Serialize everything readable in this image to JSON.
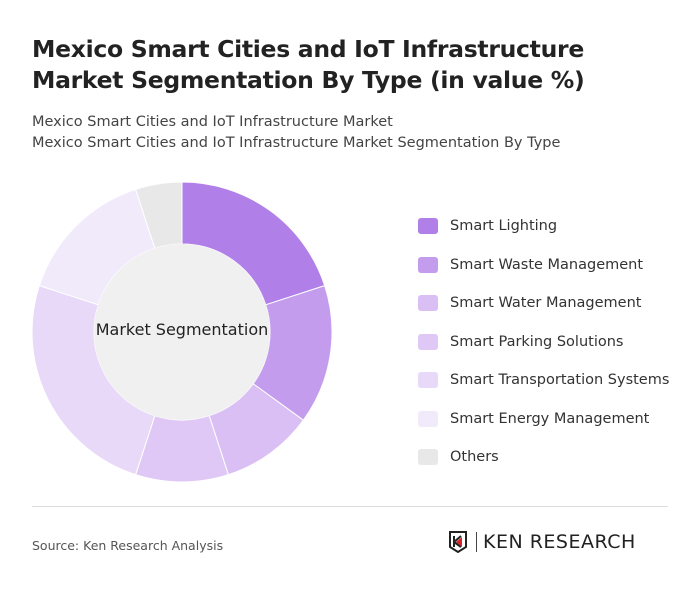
{
  "title": "Mexico Smart Cities and IoT Infrastructure Market Segmentation By Type (in value %)",
  "subtitle1": "Mexico Smart Cities and IoT Infrastructure Market",
  "subtitle2": "Mexico Smart Cities and IoT Infrastructure Market Segmentation By Type",
  "source": "Source: Ken Research Analysis",
  "logo_text": "KEN RESEARCH",
  "chart_data": {
    "type": "pie",
    "variant": "donut",
    "center_label": "Market Segmentation",
    "legend_position": "right",
    "categories": [
      "Smart Lighting",
      "Smart Waste Management",
      "Smart Water Management",
      "Smart Parking Solutions",
      "Smart Transportation Systems",
      "Smart Energy Management",
      "Others"
    ],
    "values": [
      20,
      15,
      10,
      10,
      25,
      15,
      5
    ],
    "colors": [
      "#b07fe8",
      "#c49cee",
      "#d9bff4",
      "#dfc8f5",
      "#e8d9f8",
      "#f1eafb",
      "#e8e8e8"
    ]
  }
}
